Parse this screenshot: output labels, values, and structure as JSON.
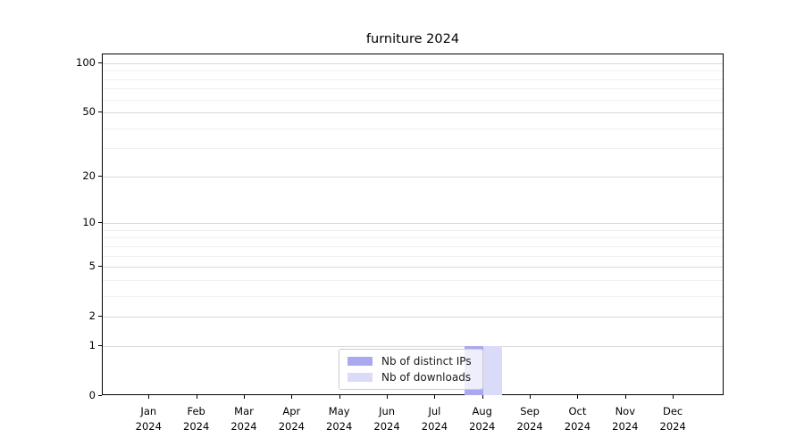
{
  "chart_data": {
    "type": "bar",
    "title": "furniture 2024",
    "categories": [
      "Jan 2024",
      "Feb 2024",
      "Mar 2024",
      "Apr 2024",
      "May 2024",
      "Jun 2024",
      "Jul 2024",
      "Aug 2024",
      "Sep 2024",
      "Oct 2024",
      "Nov 2024",
      "Dec 2024"
    ],
    "series": [
      {
        "name": "Nb of distinct IPs",
        "color": "#a9aaee",
        "values": [
          0,
          0,
          0,
          0,
          0,
          0,
          0,
          1,
          0,
          0,
          0,
          0
        ]
      },
      {
        "name": "Nb of downloads",
        "color": "#dadbf8",
        "values": [
          0,
          0,
          0,
          0,
          0,
          0,
          0,
          1,
          0,
          0,
          0,
          0
        ]
      }
    ],
    "xlabel": "",
    "ylabel": "",
    "yscale": "log1p",
    "ylim": [
      0,
      113
    ],
    "yticks_major": [
      0,
      1,
      2,
      5,
      10,
      20,
      50,
      100
    ],
    "yticks_minor": [
      3,
      4,
      6,
      7,
      8,
      9,
      30,
      40,
      60,
      70,
      80,
      90
    ],
    "grid": "horizontal-major-and-minor",
    "legend": {
      "position": "lower-center"
    },
    "colors": {
      "major_grid": "#d9d9d9",
      "minor_grid": "#f0f0f0",
      "spine": "#000000",
      "background": "#ffffff"
    }
  }
}
